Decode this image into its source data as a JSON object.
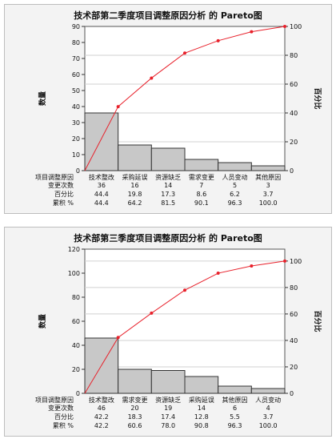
{
  "chart_data": [
    {
      "type": "bar",
      "title": "技术部第二季度项目调整原因分析 的 Pareto图",
      "ylabel_left": "数量",
      "ylabel_right": "百分比",
      "ylim_left": [
        0,
        90
      ],
      "yticks_left": [
        "0",
        "10",
        "20",
        "30",
        "40",
        "50",
        "60",
        "70",
        "80",
        "90"
      ],
      "ylim_right": [
        0,
        100
      ],
      "yticks_right": [
        "0",
        "20",
        "40",
        "60",
        "80",
        "100"
      ],
      "categories": [
        "技术整改",
        "采购延误",
        "资源缺乏",
        "需求变更",
        "人员变动",
        "其他原因"
      ],
      "series": [
        {
          "name": "变更次数",
          "values": [
            36,
            16,
            14,
            7,
            5,
            3
          ]
        },
        {
          "name": "累积 %",
          "values": [
            44.4,
            64.2,
            81.5,
            90.1,
            96.3,
            100.0
          ]
        }
      ],
      "table": {
        "header_label": "项目调整原因",
        "rows": [
          {
            "label": "变更次数",
            "values": [
              "36",
              "16",
              "14",
              "7",
              "5",
              "3"
            ]
          },
          {
            "label": "百分比",
            "values": [
              "44.4",
              "19.8",
              "17.3",
              "8.6",
              "6.2",
              "3.7"
            ]
          },
          {
            "label": "累积 %",
            "values": [
              "44.4",
              "64.2",
              "81.5",
              "90.1",
              "96.3",
              "100.0"
            ]
          }
        ]
      }
    },
    {
      "type": "bar",
      "title": "技术部第三季度项目调整原因分析 的 Pareto图",
      "ylabel_left": "数量",
      "ylabel_right": "百分比",
      "ylim_left": [
        0,
        120
      ],
      "yticks_left": [
        "0",
        "20",
        "40",
        "60",
        "80",
        "100",
        "120"
      ],
      "ylim_right": [
        0,
        109
      ],
      "yticks_right": [
        "0",
        "20",
        "40",
        "60",
        "80",
        "100"
      ],
      "categories": [
        "技术整改",
        "需求变更",
        "资源缺乏",
        "采购延误",
        "其他原因",
        "人员变动"
      ],
      "series": [
        {
          "name": "变更次数",
          "values": [
            46,
            20,
            19,
            14,
            6,
            4
          ]
        },
        {
          "name": "累积 %",
          "values": [
            42.2,
            60.6,
            78.0,
            90.8,
            96.3,
            100.0
          ]
        }
      ],
      "table": {
        "header_label": "项目调整原因",
        "rows": [
          {
            "label": "变更次数",
            "values": [
              "46",
              "20",
              "19",
              "14",
              "6",
              "4"
            ]
          },
          {
            "label": "百分比",
            "values": [
              "42.2",
              "18.3",
              "17.4",
              "12.8",
              "5.5",
              "3.7"
            ]
          },
          {
            "label": "累积 %",
            "values": [
              "42.2",
              "60.6",
              "78.0",
              "90.8",
              "96.3",
              "100.0"
            ]
          }
        ]
      }
    }
  ]
}
